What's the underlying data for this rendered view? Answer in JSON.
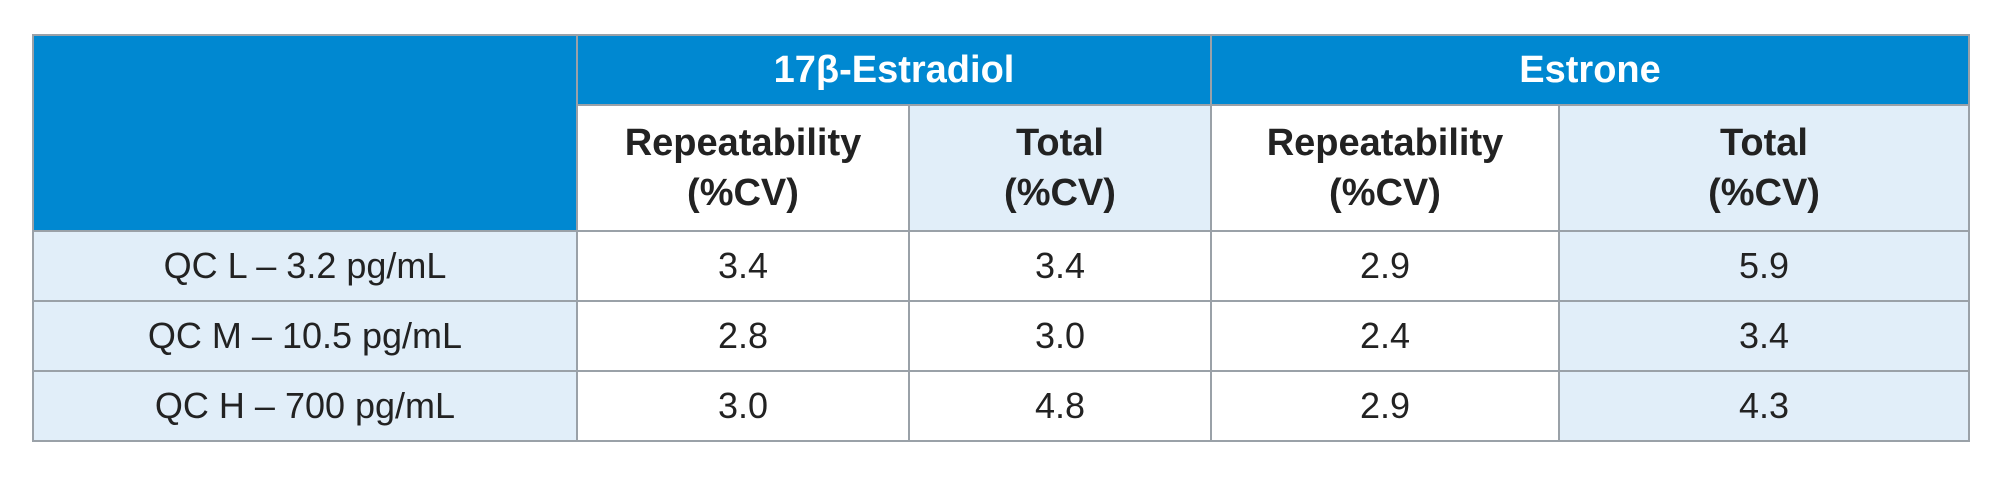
{
  "header": {
    "groups": [
      "17β-Estradiol",
      "Estrone"
    ],
    "subheads": [
      [
        "Repeatability",
        "(%CV)"
      ],
      [
        "Total",
        "(%CV)"
      ],
      [
        "Repeatability",
        "(%CV)"
      ],
      [
        "Total",
        "(%CV)"
      ]
    ]
  },
  "rows": [
    {
      "label": "QC L – 3.2 pg/mL",
      "values": [
        "3.4",
        "3.4",
        "2.9",
        "5.9"
      ]
    },
    {
      "label": "QC M – 10.5 pg/mL",
      "values": [
        "2.8",
        "3.0",
        "2.4",
        "3.4"
      ]
    },
    {
      "label": "QC H – 700 pg/mL",
      "values": [
        "3.0",
        "4.8",
        "2.9",
        "4.3"
      ]
    }
  ],
  "colors": {
    "header_blue": "#0088d1",
    "tint": "#e1eef9",
    "border": "#9aa1a8"
  }
}
